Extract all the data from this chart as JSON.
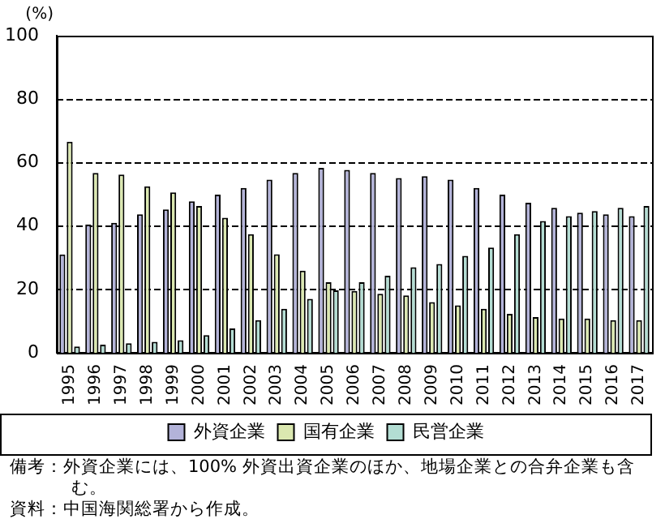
{
  "chart_data": {
    "type": "bar",
    "ylabel": "(%)",
    "categories": [
      "1995",
      "1996",
      "1997",
      "1998",
      "1999",
      "2000",
      "2001",
      "2002",
      "2003",
      "2004",
      "2005",
      "2006",
      "2007",
      "2008",
      "2009",
      "2010",
      "2011",
      "2012",
      "2013",
      "2014",
      "2015",
      "2016",
      "2017"
    ],
    "series": [
      {
        "name": "外資企業",
        "color": "#b3b3d9",
        "values": [
          31,
          40.5,
          41,
          43.7,
          45.2,
          47.8,
          49.9,
          52,
          54.6,
          56.7,
          58.3,
          57.7,
          56.7,
          55.1,
          55.7,
          54.6,
          52,
          49.9,
          47.3,
          45.7,
          44.2,
          43.7,
          43.1
        ]
      },
      {
        "name": "国有企業",
        "color": "#dbe8b0",
        "values": [
          66.6,
          56.7,
          56.2,
          52.5,
          50.6,
          46.3,
          42.6,
          37.4,
          31.1,
          25.9,
          22.3,
          19.5,
          18.6,
          18.1,
          16,
          15,
          13.9,
          12.3,
          11.3,
          10.8,
          10.8,
          10.3,
          10.3
        ]
      },
      {
        "name": "民営企業",
        "color": "#b3ddd3",
        "values": [
          2,
          2.6,
          3,
          3.5,
          4,
          5.6,
          7.7,
          10.3,
          13.9,
          17,
          19.7,
          22.3,
          24.3,
          27,
          28,
          30.6,
          33.2,
          37.4,
          41.6,
          43.1,
          44.7,
          45.7,
          46.3
        ]
      }
    ],
    "ylim": [
      0,
      100
    ],
    "yticks": [
      0,
      20,
      40,
      60,
      80,
      100
    ],
    "grid": "y",
    "legend": "bottom",
    "annotations": [
      "備考：外資企業には、100% 外資出資企業のほか、地場企業との合弁企業も含む。",
      "資料：中国海関総署から作成。"
    ]
  }
}
